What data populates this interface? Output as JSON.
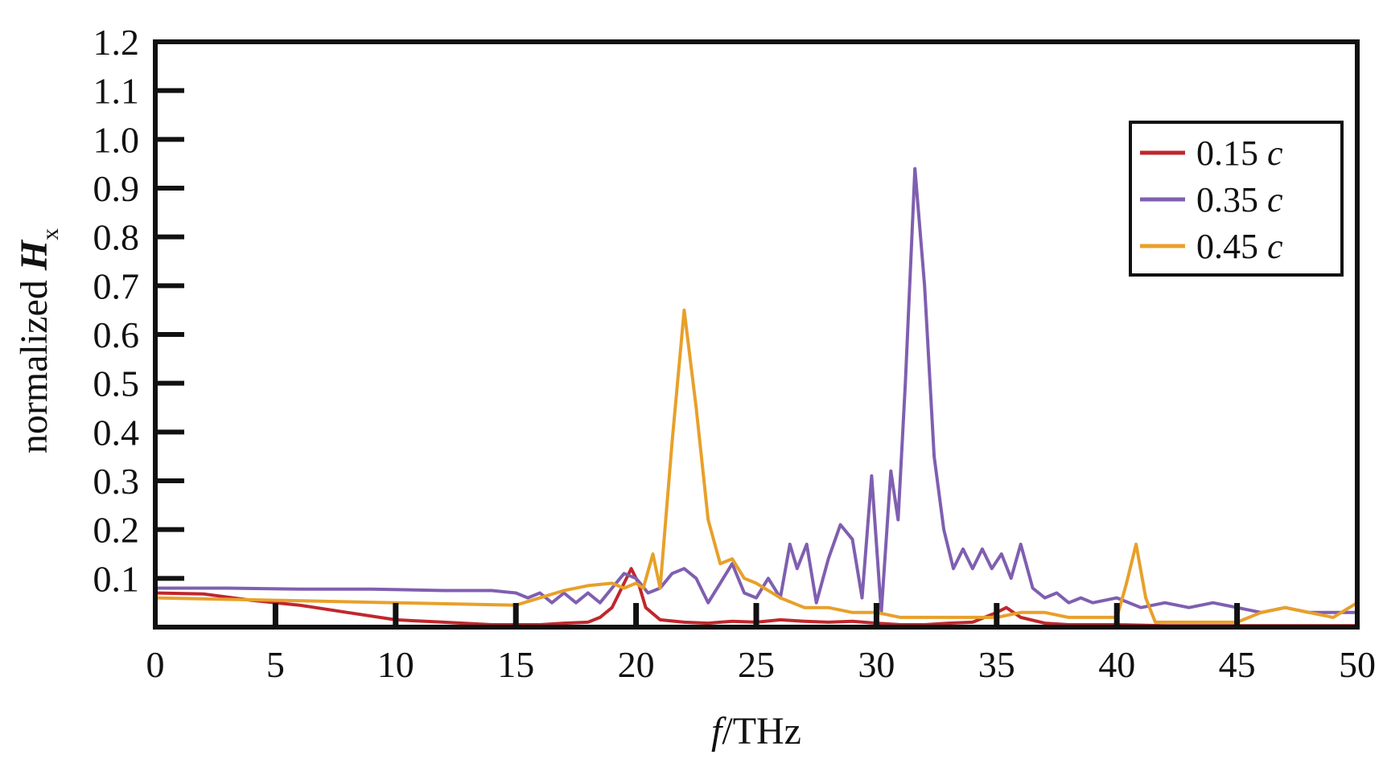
{
  "chart_data": {
    "type": "line",
    "xlabel": {
      "italic": "f",
      "text": "/THz"
    },
    "ylabel": {
      "text": "normalized ",
      "bold_italic": "H",
      "subscript": "x"
    },
    "xlim": [
      0,
      50
    ],
    "ylim": [
      0,
      1.2
    ],
    "xticks": [
      0,
      5,
      10,
      15,
      20,
      25,
      30,
      35,
      40,
      45,
      50
    ],
    "xtick_labels": [
      "0",
      "5",
      "10",
      "15",
      "20",
      "25",
      "30",
      "35",
      "40",
      "45",
      "50"
    ],
    "yticks": [
      0.1,
      0.2,
      0.3,
      0.4,
      0.5,
      0.6,
      0.7,
      0.8,
      0.9,
      1.0,
      1.1,
      1.2
    ],
    "ytick_labels": [
      "0.1",
      "0.2",
      "0.3",
      "0.4",
      "0.5",
      "0.6",
      "0.7",
      "0.8",
      "0.9",
      "1.0",
      "1.1",
      "1.2"
    ],
    "grid": false,
    "legend": {
      "position": "top-right"
    },
    "series": [
      {
        "name": "0.15",
        "unit": "c",
        "color": "#c0272d",
        "x": [
          0,
          2,
          4,
          6,
          8,
          10,
          12,
          14,
          16,
          17,
          18,
          18.5,
          19,
          19.5,
          19.8,
          20.1,
          20.4,
          21,
          22,
          23,
          24,
          25,
          26,
          27,
          28,
          29,
          30,
          31,
          32,
          33,
          34,
          35,
          35.4,
          36,
          37,
          38,
          40,
          42,
          44,
          46,
          48,
          50
        ],
        "y": [
          0.07,
          0.068,
          0.055,
          0.045,
          0.03,
          0.015,
          0.01,
          0.005,
          0.005,
          0.008,
          0.01,
          0.02,
          0.04,
          0.09,
          0.12,
          0.09,
          0.04,
          0.015,
          0.01,
          0.008,
          0.012,
          0.01,
          0.015,
          0.012,
          0.01,
          0.012,
          0.008,
          0.005,
          0.005,
          0.008,
          0.01,
          0.03,
          0.04,
          0.02,
          0.008,
          0.005,
          0.005,
          0.003,
          0.003,
          0.003,
          0.003,
          0.003
        ]
      },
      {
        "name": "0.35",
        "unit": "c",
        "color": "#7f5fb0",
        "x": [
          0,
          3,
          6,
          9,
          12,
          14,
          15,
          15.5,
          16,
          16.5,
          17,
          17.5,
          18,
          18.5,
          19,
          19.5,
          20,
          20.5,
          21,
          21.5,
          22,
          22.5,
          23,
          23.5,
          24,
          24.5,
          25,
          25.5,
          26,
          26.4,
          26.7,
          27.1,
          27.5,
          28,
          28.5,
          29,
          29.4,
          29.8,
          30.2,
          30.6,
          30.9,
          31.2,
          31.6,
          32,
          32.4,
          32.8,
          33.2,
          33.6,
          34,
          34.4,
          34.8,
          35.2,
          35.6,
          36,
          36.5,
          37,
          37.5,
          38,
          38.5,
          39,
          40,
          41,
          42,
          43,
          44,
          45,
          46,
          47,
          48,
          49,
          50
        ],
        "y": [
          0.08,
          0.08,
          0.078,
          0.078,
          0.075,
          0.075,
          0.07,
          0.06,
          0.07,
          0.05,
          0.07,
          0.05,
          0.07,
          0.05,
          0.08,
          0.11,
          0.1,
          0.07,
          0.08,
          0.11,
          0.12,
          0.1,
          0.05,
          0.09,
          0.13,
          0.07,
          0.06,
          0.1,
          0.06,
          0.17,
          0.12,
          0.17,
          0.05,
          0.14,
          0.21,
          0.18,
          0.06,
          0.31,
          0.03,
          0.32,
          0.22,
          0.5,
          0.94,
          0.7,
          0.35,
          0.2,
          0.12,
          0.16,
          0.12,
          0.16,
          0.12,
          0.15,
          0.1,
          0.17,
          0.08,
          0.06,
          0.07,
          0.05,
          0.06,
          0.05,
          0.06,
          0.04,
          0.05,
          0.04,
          0.05,
          0.04,
          0.03,
          0.04,
          0.03,
          0.03,
          0.03
        ]
      },
      {
        "name": "0.45",
        "unit": "c",
        "color": "#e8a02a",
        "x": [
          0,
          5,
          10,
          15,
          16,
          17,
          18,
          19,
          19.5,
          20,
          20.3,
          20.7,
          21,
          21.5,
          22,
          22.5,
          23,
          23.5,
          24,
          24.5,
          25,
          26,
          27,
          28,
          29,
          30,
          31,
          32,
          33,
          34,
          35,
          36,
          37,
          38,
          39,
          40,
          40.4,
          40.8,
          41.2,
          41.6,
          42,
          43,
          44,
          45,
          46,
          47,
          48,
          49,
          50
        ],
        "y": [
          0.06,
          0.055,
          0.05,
          0.045,
          0.06,
          0.075,
          0.085,
          0.09,
          0.08,
          0.09,
          0.08,
          0.15,
          0.08,
          0.38,
          0.65,
          0.45,
          0.22,
          0.13,
          0.14,
          0.1,
          0.09,
          0.06,
          0.04,
          0.04,
          0.03,
          0.03,
          0.02,
          0.02,
          0.02,
          0.02,
          0.02,
          0.03,
          0.03,
          0.02,
          0.02,
          0.02,
          0.09,
          0.17,
          0.06,
          0.01,
          0.01,
          0.01,
          0.01,
          0.01,
          0.03,
          0.04,
          0.03,
          0.02,
          0.05
        ]
      }
    ]
  }
}
